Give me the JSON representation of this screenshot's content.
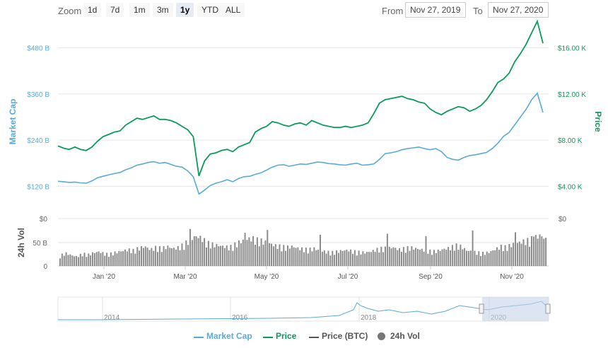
{
  "toolbar": {
    "zoom_label": "Zoom",
    "zoom_buttons": [
      "1d",
      "7d",
      "1m",
      "3m",
      "1y",
      "YTD",
      "ALL"
    ],
    "active_zoom": "1y",
    "from_label": "From",
    "from_value": "Nov 27, 2019",
    "to_label": "To",
    "to_value": "Nov 27, 2020"
  },
  "colors": {
    "market_cap": "#5aaad6",
    "price": "#0a9a5a",
    "price_btc": "#555555",
    "volume": "#777777",
    "grid": "#e6e6e6",
    "navigator_mask": "#c7d2ea"
  },
  "chart_data": {
    "type": "line",
    "title": "",
    "x_tick_labels": [
      "Jan '20",
      "Mar '20",
      "May '20",
      "Jul '20",
      "Sep '20",
      "Nov '20"
    ],
    "left_axis": {
      "label": "Market Cap",
      "ticks": [
        "$120 B",
        "$240 B",
        "$360 B",
        "$480 B"
      ],
      "ylim": [
        60,
        540
      ]
    },
    "right_axis": {
      "label": "Price",
      "ticks": [
        "$4.00 K",
        "$8.00 K",
        "$12.00 K",
        "$16.00 K"
      ],
      "ylim": [
        2000,
        18000
      ]
    },
    "volume_axis": {
      "label": "24h Vol",
      "ticks": [
        "0",
        "50 B",
        "$0"
      ],
      "ylim": [
        0,
        100
      ],
      "right_tick": "$0"
    },
    "series": [
      {
        "name": "Market Cap",
        "unit": "B USD",
        "values": [
          133,
          132,
          130,
          131,
          129,
          128,
          134,
          142,
          146,
          150,
          153,
          156,
          163,
          168,
          175,
          178,
          182,
          184,
          180,
          182,
          177,
          172,
          170,
          160,
          145,
          100,
          110,
          122,
          128,
          132,
          137,
          132,
          140,
          145,
          146,
          151,
          155,
          162,
          170,
          175,
          176,
          172,
          175,
          178,
          177,
          180,
          183,
          182,
          179,
          178,
          176,
          175,
          178,
          180,
          175,
          176,
          178,
          190,
          205,
          207,
          210,
          215,
          218,
          220,
          222,
          218,
          215,
          218,
          210,
          195,
          190,
          188,
          195,
          200,
          202,
          205,
          208,
          218,
          232,
          250,
          260,
          280,
          300,
          320,
          345,
          362,
          312
        ]
      },
      {
        "name": "Price",
        "unit": "USD",
        "values": [
          7500,
          7300,
          7200,
          7400,
          7200,
          7100,
          7400,
          7900,
          8300,
          8500,
          8700,
          8800,
          9300,
          9600,
          9900,
          9800,
          9950,
          10100,
          9800,
          9800,
          9700,
          9500,
          9200,
          8900,
          8300,
          4900,
          6200,
          6800,
          6900,
          7100,
          7200,
          7000,
          7400,
          7600,
          7800,
          8700,
          9000,
          9200,
          9600,
          9500,
          9300,
          9200,
          9400,
          9500,
          9300,
          9700,
          9500,
          9300,
          9200,
          9100,
          9100,
          9200,
          9100,
          9200,
          9300,
          9500,
          10300,
          11200,
          11500,
          11600,
          11700,
          11800,
          11600,
          11500,
          11300,
          11200,
          10700,
          10400,
          10200,
          10500,
          10700,
          10900,
          10800,
          10500,
          10700,
          11000,
          11500,
          12200,
          13000,
          13300,
          13800,
          14800,
          15500,
          16300,
          17300,
          18300,
          16400
        ]
      },
      {
        "name": "24h Vol",
        "unit": "B USD",
        "values": [
          20,
          25,
          21,
          18,
          24,
          22,
          26,
          28,
          23,
          24,
          27,
          29,
          32,
          30,
          35,
          38,
          32,
          36,
          34,
          38,
          34,
          36,
          42,
          52,
          58,
          55,
          45,
          42,
          40,
          38,
          36,
          42,
          48,
          52,
          54,
          50,
          48,
          44,
          40,
          38,
          36,
          38,
          35,
          33,
          32,
          34,
          30,
          28,
          26,
          28,
          30,
          31,
          28,
          27,
          26,
          28,
          32,
          34,
          35,
          36,
          32,
          34,
          36,
          34,
          32,
          30,
          28,
          30,
          33,
          35,
          40,
          38,
          30,
          28,
          26,
          25,
          27,
          32,
          38,
          36,
          42,
          45,
          48,
          50,
          55,
          60,
          52
        ]
      }
    ],
    "volume_spikes": [
      78,
      70,
      76,
      66,
      68,
      63,
      75,
      71,
      62
    ],
    "navigator": {
      "year_labels": [
        "2014",
        "2016",
        "2018",
        "2020"
      ]
    }
  },
  "legend": {
    "items": [
      "Market Cap",
      "Price",
      "Price (BTC)",
      "24h Vol"
    ]
  }
}
